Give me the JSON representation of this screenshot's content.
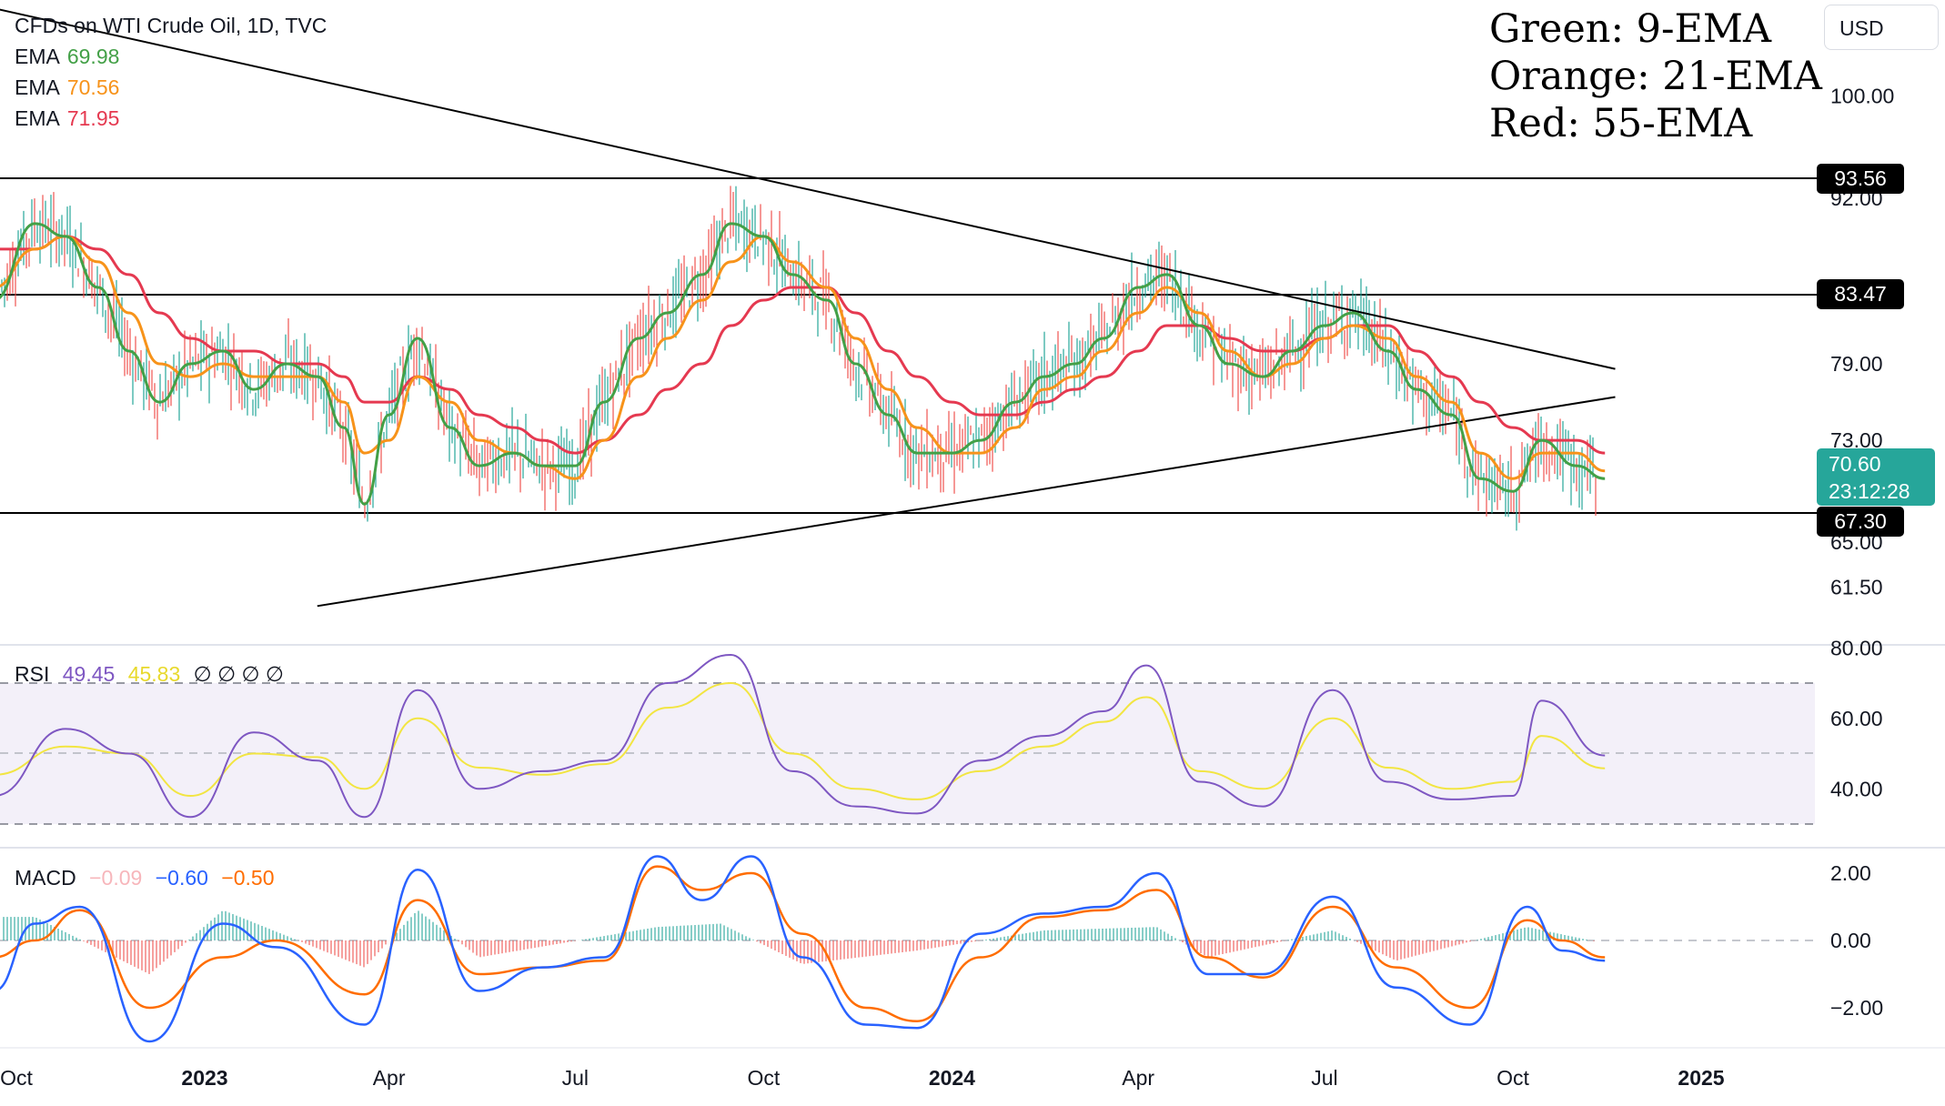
{
  "legend": {
    "title": "CFDs on WTI Crude Oil, 1D, TVC",
    "ema_label": "EMA",
    "ema_fast": "69.98",
    "ema_mid": "70.56",
    "ema_slow": "71.95"
  },
  "annotation": {
    "line1": "Green: 9-EMA",
    "line2": "Orange: 21-EMA",
    "line3": "Red: 55-EMA"
  },
  "currency_button": "USD",
  "price_tags": {
    "resistance_high": "93.56",
    "resistance_mid": "83.47",
    "support": "67.30",
    "last_price": "70.60",
    "countdown": "23:12:28"
  },
  "rsi": {
    "label": "RSI",
    "value": "49.45",
    "ma_value": "45.83",
    "placeholders": "∅ ∅ ∅ ∅"
  },
  "macd": {
    "label": "MACD",
    "histogram": "−0.09",
    "macd_value": "−0.60",
    "signal_value": "−0.50"
  },
  "colors": {
    "ema9": "#43a047",
    "ema21": "#f7931a",
    "ema55": "#e53950",
    "rsi": "#7e57c2",
    "rsi_ma": "#f2e542",
    "macd": "#2962ff",
    "signal": "#ff6d00",
    "hist_pos": "#26a69a",
    "hist_neg": "#ef5350",
    "last_price_tag": "#26a69a"
  },
  "chart_data": [
    {
      "type": "line",
      "panel": "price",
      "instrument": "CFDs on WTI Crude Oil",
      "interval": "1D",
      "source": "TVC",
      "y_tick_labels": [
        "61.50",
        "65.00",
        "73.00",
        "79.00",
        "92.00",
        "100.00"
      ],
      "y_ticks": [
        61.5,
        65,
        73,
        79,
        92,
        100
      ],
      "x_tick_labels": [
        "Oct",
        "2023",
        "Apr",
        "Jul",
        "Oct",
        "2024",
        "Apr",
        "Jul",
        "Oct",
        "2025"
      ],
      "x_ticks": [
        "2022-10",
        "2023-01",
        "2023-04",
        "2023-07",
        "2023-10",
        "2024-01",
        "2024-04",
        "2024-07",
        "2024-10",
        "2025-01"
      ],
      "horizontal_levels": [
        93.56,
        83.47,
        67.3
      ],
      "last_price": 70.6,
      "trendlines": [
        {
          "name": "descending",
          "points": [
            [
              "2022-08-20",
              108.0
            ],
            [
              "2024-11-20",
              78.6
            ]
          ]
        },
        {
          "name": "ascending",
          "points": [
            [
              "2023-02-25",
              60.0
            ],
            [
              "2024-11-20",
              76.4
            ]
          ]
        }
      ],
      "series": [
        {
          "name": "EMA 9",
          "x": [
            "2022-09-20",
            "2022-10-10",
            "2022-10-25",
            "2022-11-10",
            "2022-11-25",
            "2022-12-10",
            "2022-12-25",
            "2023-01-10",
            "2023-01-25",
            "2023-02-10",
            "2023-02-25",
            "2023-03-10",
            "2023-03-20",
            "2023-04-01",
            "2023-04-15",
            "2023-05-01",
            "2023-05-15",
            "2023-06-01",
            "2023-06-15",
            "2023-07-01",
            "2023-07-15",
            "2023-08-01",
            "2023-08-15",
            "2023-09-01",
            "2023-09-15",
            "2023-10-01",
            "2023-10-15",
            "2023-11-01",
            "2023-11-15",
            "2023-12-01",
            "2023-12-15",
            "2024-01-01",
            "2024-01-15",
            "2024-02-01",
            "2024-02-15",
            "2024-03-01",
            "2024-03-15",
            "2024-04-01",
            "2024-04-15",
            "2024-05-01",
            "2024-05-15",
            "2024-06-01",
            "2024-06-15",
            "2024-07-01",
            "2024-07-15",
            "2024-08-01",
            "2024-08-15",
            "2024-09-01",
            "2024-09-15",
            "2024-10-01",
            "2024-10-15",
            "2024-11-01",
            "2024-11-15"
          ],
          "values": [
            84,
            90,
            89,
            85,
            80,
            76,
            79,
            80,
            77,
            79,
            78,
            74,
            68,
            75,
            81,
            74,
            71,
            72,
            71,
            71,
            76,
            81,
            83,
            86,
            90,
            89,
            86,
            84,
            79,
            75,
            72,
            72,
            73,
            76,
            78,
            79,
            81,
            85,
            86,
            82,
            79,
            78,
            80,
            82,
            83,
            80,
            77,
            75,
            70,
            69,
            73,
            71,
            70
          ]
        },
        {
          "name": "EMA 21",
          "x": [
            "2022-09-20",
            "2022-10-10",
            "2022-10-25",
            "2022-11-10",
            "2022-11-25",
            "2022-12-10",
            "2022-12-25",
            "2023-01-10",
            "2023-01-25",
            "2023-02-10",
            "2023-02-25",
            "2023-03-10",
            "2023-03-20",
            "2023-04-01",
            "2023-04-15",
            "2023-05-01",
            "2023-05-15",
            "2023-06-01",
            "2023-06-15",
            "2023-07-01",
            "2023-07-15",
            "2023-08-01",
            "2023-08-15",
            "2023-09-01",
            "2023-09-15",
            "2023-10-01",
            "2023-10-15",
            "2023-11-01",
            "2023-11-15",
            "2023-12-01",
            "2023-12-15",
            "2024-01-01",
            "2024-01-15",
            "2024-02-01",
            "2024-02-15",
            "2024-03-01",
            "2024-03-15",
            "2024-04-01",
            "2024-04-15",
            "2024-05-01",
            "2024-05-15",
            "2024-06-01",
            "2024-06-15",
            "2024-07-01",
            "2024-07-15",
            "2024-08-01",
            "2024-08-15",
            "2024-09-01",
            "2024-09-15",
            "2024-10-01",
            "2024-10-15",
            "2024-11-01",
            "2024-11-15"
          ],
          "values": [
            85,
            88,
            89,
            87,
            83,
            79,
            78,
            79,
            78,
            78,
            78,
            76,
            72,
            73,
            78,
            76,
            73,
            72,
            71,
            70,
            73,
            78,
            81,
            84,
            87,
            89,
            87,
            85,
            81,
            77,
            74,
            72,
            72,
            74,
            77,
            78,
            80,
            83,
            85,
            83,
            80,
            78,
            79,
            81,
            82,
            81,
            78,
            76,
            72,
            70,
            72,
            72,
            70.6
          ]
        },
        {
          "name": "EMA 55",
          "x": [
            "2022-09-20",
            "2022-10-10",
            "2022-10-25",
            "2022-11-10",
            "2022-11-25",
            "2022-12-10",
            "2022-12-25",
            "2023-01-10",
            "2023-01-25",
            "2023-02-10",
            "2023-02-25",
            "2023-03-10",
            "2023-03-20",
            "2023-04-01",
            "2023-04-15",
            "2023-05-01",
            "2023-05-15",
            "2023-06-01",
            "2023-06-15",
            "2023-07-01",
            "2023-07-15",
            "2023-08-01",
            "2023-08-15",
            "2023-09-01",
            "2023-09-15",
            "2023-10-01",
            "2023-10-15",
            "2023-11-01",
            "2023-11-15",
            "2023-12-01",
            "2023-12-15",
            "2024-01-01",
            "2024-01-15",
            "2024-02-01",
            "2024-02-15",
            "2024-03-01",
            "2024-03-15",
            "2024-04-01",
            "2024-04-15",
            "2024-05-01",
            "2024-05-15",
            "2024-06-01",
            "2024-06-15",
            "2024-07-01",
            "2024-07-15",
            "2024-08-01",
            "2024-08-15",
            "2024-09-01",
            "2024-09-15",
            "2024-10-01",
            "2024-10-15",
            "2024-11-01",
            "2024-11-15"
          ],
          "values": [
            88,
            88,
            89,
            88,
            86,
            83,
            81,
            80,
            80,
            79,
            79,
            78,
            76,
            76,
            78,
            77,
            75,
            74,
            73,
            72,
            73,
            75,
            77,
            79,
            82,
            84,
            85,
            85,
            83,
            80,
            78,
            76,
            75,
            75,
            76,
            77,
            78,
            80,
            82,
            82,
            81,
            80,
            80,
            81,
            82,
            82,
            80,
            78,
            76,
            74,
            73,
            73,
            72
          ]
        }
      ]
    },
    {
      "type": "line",
      "panel": "RSI",
      "y_tick_labels": [
        "40.00",
        "60.00",
        "80.00"
      ],
      "y_ticks": [
        40,
        60,
        80
      ],
      "bands": [
        70,
        50,
        30
      ],
      "series": [
        {
          "name": "RSI",
          "x": [
            "2022-09-20",
            "2022-10-25",
            "2022-11-25",
            "2022-12-25",
            "2023-01-25",
            "2023-02-25",
            "2023-03-20",
            "2023-04-15",
            "2023-05-15",
            "2023-06-15",
            "2023-07-15",
            "2023-08-15",
            "2023-09-15",
            "2023-10-15",
            "2023-11-15",
            "2023-12-15",
            "2024-01-15",
            "2024-02-15",
            "2024-03-15",
            "2024-04-05",
            "2024-05-01",
            "2024-06-01",
            "2024-07-05",
            "2024-08-01",
            "2024-09-01",
            "2024-10-01",
            "2024-10-15",
            "2024-11-15"
          ],
          "values": [
            38,
            57,
            50,
            32,
            56,
            48,
            32,
            68,
            40,
            45,
            48,
            70,
            78,
            45,
            35,
            33,
            48,
            55,
            62,
            75,
            42,
            35,
            68,
            42,
            37,
            38,
            65,
            49.45
          ]
        },
        {
          "name": "RSI MA",
          "x": [
            "2022-09-20",
            "2022-10-25",
            "2022-11-25",
            "2022-12-25",
            "2023-01-25",
            "2023-02-25",
            "2023-03-20",
            "2023-04-15",
            "2023-05-15",
            "2023-06-15",
            "2023-07-15",
            "2023-08-15",
            "2023-09-15",
            "2023-10-15",
            "2023-11-15",
            "2023-12-15",
            "2024-01-15",
            "2024-02-15",
            "2024-03-15",
            "2024-04-05",
            "2024-05-01",
            "2024-06-01",
            "2024-07-05",
            "2024-08-01",
            "2024-09-01",
            "2024-10-01",
            "2024-10-15",
            "2024-11-15"
          ],
          "values": [
            44,
            52,
            50,
            38,
            50,
            49,
            40,
            60,
            46,
            44,
            47,
            63,
            70,
            50,
            40,
            37,
            45,
            52,
            59,
            66,
            45,
            40,
            60,
            46,
            40,
            42,
            55,
            45.83
          ]
        }
      ]
    },
    {
      "type": "line",
      "panel": "MACD",
      "y_tick_labels": [
        "−2.00",
        "0.00",
        "2.00"
      ],
      "y_ticks": [
        -2,
        0,
        2
      ],
      "series": [
        {
          "name": "MACD",
          "x": [
            "2022-09-20",
            "2022-10-10",
            "2022-11-01",
            "2022-12-05",
            "2023-01-10",
            "2023-02-05",
            "2023-03-20",
            "2023-04-15",
            "2023-05-15",
            "2023-06-15",
            "2023-07-15",
            "2023-08-10",
            "2023-09-01",
            "2023-09-25",
            "2023-10-20",
            "2023-11-20",
            "2023-12-15",
            "2024-01-15",
            "2024-02-15",
            "2024-03-15",
            "2024-04-10",
            "2024-05-05",
            "2024-06-01",
            "2024-07-05",
            "2024-08-05",
            "2024-09-10",
            "2024-10-08",
            "2024-10-25",
            "2024-11-15"
          ],
          "values": [
            -1.5,
            0.5,
            1.0,
            -3.0,
            0.5,
            -0.2,
            -2.5,
            2.1,
            -1.5,
            -0.8,
            -0.5,
            2.5,
            1.2,
            2.5,
            -0.5,
            -2.5,
            -2.6,
            0.2,
            0.8,
            1.0,
            2.0,
            -1.0,
            -1.0,
            1.3,
            -1.4,
            -2.5,
            1.0,
            -0.3,
            -0.6
          ]
        },
        {
          "name": "Signal",
          "x": [
            "2022-09-20",
            "2022-10-10",
            "2022-11-01",
            "2022-12-05",
            "2023-01-10",
            "2023-02-05",
            "2023-03-20",
            "2023-04-15",
            "2023-05-15",
            "2023-06-15",
            "2023-07-15",
            "2023-08-10",
            "2023-09-01",
            "2023-09-25",
            "2023-10-20",
            "2023-11-20",
            "2023-12-15",
            "2024-01-15",
            "2024-02-15",
            "2024-03-15",
            "2024-04-10",
            "2024-05-05",
            "2024-06-01",
            "2024-07-05",
            "2024-08-05",
            "2024-09-10",
            "2024-10-08",
            "2024-10-25",
            "2024-11-15"
          ],
          "values": [
            -0.5,
            0.0,
            0.9,
            -2.0,
            -0.5,
            0.0,
            -1.6,
            1.2,
            -1.0,
            -0.8,
            -0.6,
            2.2,
            1.5,
            2.0,
            0.2,
            -2.0,
            -2.4,
            -0.5,
            0.7,
            0.9,
            1.5,
            -0.5,
            -1.1,
            1.0,
            -0.8,
            -2.0,
            0.6,
            0.0,
            -0.5
          ]
        },
        {
          "name": "Histogram",
          "x": [
            "2022-10-10",
            "2022-12-05",
            "2023-01-10",
            "2023-03-20",
            "2023-04-15",
            "2023-05-15",
            "2023-08-10",
            "2023-09-10",
            "2023-10-20",
            "2023-12-15",
            "2024-02-15",
            "2024-04-10",
            "2024-05-05",
            "2024-07-05",
            "2024-08-05",
            "2024-10-08",
            "2024-11-15"
          ],
          "values": [
            0.7,
            -1.0,
            0.9,
            -0.8,
            0.9,
            -0.5,
            0.4,
            0.5,
            -0.7,
            -0.3,
            0.3,
            0.4,
            -0.5,
            0.3,
            -0.6,
            0.4,
            -0.09
          ]
        }
      ]
    }
  ]
}
